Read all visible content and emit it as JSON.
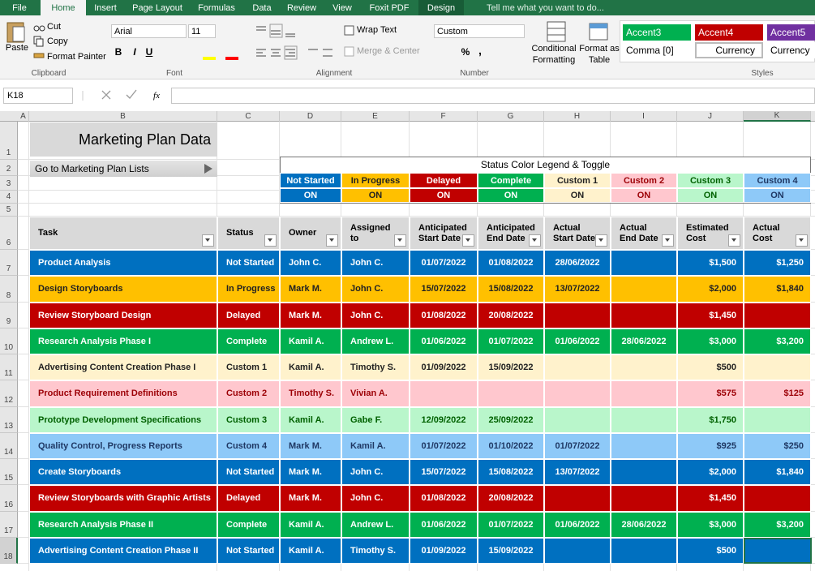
{
  "tabs": [
    "File",
    "Home",
    "Insert",
    "Page Layout",
    "Formulas",
    "Data",
    "Review",
    "View",
    "Foxit PDF",
    "Design"
  ],
  "tell_me": "Tell me what you want to do...",
  "ribbon": {
    "clipboard": {
      "paste": "Paste",
      "cut": "Cut",
      "copy": "Copy",
      "format_painter": "Format Painter",
      "label": "Clipboard"
    },
    "font": {
      "name": "Arial",
      "size": 11,
      "bold": "B",
      "italic": "I",
      "underline": "U",
      "label": "Font"
    },
    "alignment": {
      "wrap": "Wrap Text",
      "merge": "Merge & Center",
      "label": "Alignment"
    },
    "number": {
      "format": "Custom",
      "percent": "%",
      "comma": ",",
      "label": "Number"
    },
    "conditional": "Conditional Formatting",
    "format_table": "Format as Table",
    "styles": {
      "items": [
        {
          "text": "Accent3",
          "color": "#00b050",
          "text_color": "#ffffff"
        },
        {
          "text": "Accent4",
          "color": "#c00000",
          "text_color": "#ffffff"
        },
        {
          "text": "Accent5",
          "color": "#7030a0",
          "text_color": "#ffffff"
        },
        {
          "text": "Comma [0]",
          "color": "#ffffff",
          "text_color": "#000000"
        },
        {
          "text": "Currency",
          "color": "#ffffff",
          "text_color": "#000000"
        },
        {
          "text": "Currency",
          "color": "#ffffff",
          "text_color": "#000000"
        }
      ],
      "label": "Styles"
    }
  },
  "name_box": "K18",
  "fx": "fx",
  "columns": [
    "A",
    "B",
    "C",
    "D",
    "E",
    "F",
    "G",
    "H",
    "I",
    "J",
    "K"
  ],
  "rows": [
    1,
    2,
    3,
    4,
    5,
    6,
    7,
    8,
    9,
    10,
    11,
    12,
    13,
    14,
    15,
    16,
    17,
    18
  ],
  "sheet": {
    "title": "Marketing Plan Data",
    "link": "Go to Marketing Plan Lists",
    "legend": {
      "title": "Status Color Legend & Toggle",
      "items": [
        {
          "status": "Not Started",
          "toggle": "ON",
          "color": "#0070c0",
          "text_color": "#ffffff"
        },
        {
          "status": "In Progress",
          "toggle": "ON",
          "color": "#ffc000",
          "text_color": "#222222"
        },
        {
          "status": "Delayed",
          "toggle": "ON",
          "color": "#c00000",
          "text_color": "#ffffff"
        },
        {
          "status": "Complete",
          "toggle": "ON",
          "color": "#00b050",
          "text_color": "#ffffff"
        },
        {
          "status": "Custom 1",
          "toggle": "ON",
          "color": "#fff2cc",
          "text_color": "#222222"
        },
        {
          "status": "Custom 2",
          "toggle": "ON",
          "color": "#ffc7ce",
          "text_color": "#9c0006"
        },
        {
          "status": "Custom 3",
          "toggle": "ON",
          "color": "#b9f6cb",
          "text_color": "#006100"
        },
        {
          "status": "Custom 4",
          "toggle": "ON",
          "color": "#8ec9f8",
          "text_color": "#1f3864"
        }
      ]
    },
    "table": {
      "headers": [
        "Task",
        "Status",
        "Owner",
        "Assigned to",
        "Anticipated Start Date",
        "Anticipated End Date",
        "Actual Start Date",
        "Actual End Date",
        "Estimated Cost",
        "Actual Cost"
      ],
      "rows": [
        [
          "Product Analysis",
          "Not Started",
          "John C.",
          "John C.",
          "01/07/2022",
          "01/08/2022",
          "28/06/2022",
          null,
          "$1,500",
          "$1,250"
        ],
        [
          "Design Storyboards",
          "In Progress",
          "Mark M.",
          "John C.",
          "15/07/2022",
          "15/08/2022",
          "13/07/2022",
          null,
          "$2,000",
          "$1,840"
        ],
        [
          "Review Storyboard Design",
          "Delayed",
          "Mark M.",
          "John C.",
          "01/08/2022",
          "20/08/2022",
          null,
          null,
          "$1,450",
          null
        ],
        [
          "Research Analysis Phase I",
          "Complete",
          "Kamil A.",
          "Andrew L.",
          "01/06/2022",
          "01/07/2022",
          "01/06/2022",
          "28/06/2022",
          "$3,000",
          "$3,200"
        ],
        [
          "Advertising Content Creation Phase I",
          "Custom 1",
          "Kamil A.",
          "Timothy S.",
          "01/09/2022",
          "15/09/2022",
          null,
          null,
          "$500",
          null
        ],
        [
          "Product Requirement Definitions",
          "Custom 2",
          "Timothy S.",
          "Vivian A.",
          null,
          null,
          null,
          null,
          "$575",
          "$125"
        ],
        [
          "Prototype Development Specifications",
          "Custom 3",
          "Kamil A.",
          "Gabe F.",
          "12/09/2022",
          "25/09/2022",
          null,
          null,
          "$1,750",
          null
        ],
        [
          "Quality Control, Progress Reports",
          "Custom 4",
          "Mark M.",
          "Kamil A.",
          "01/07/2022",
          "01/10/2022",
          "01/07/2022",
          null,
          "$925",
          "$250"
        ],
        [
          "Create Storyboards",
          "Not Started",
          "Mark M.",
          "John C.",
          "15/07/2022",
          "15/08/2022",
          "13/07/2022",
          null,
          "$2,000",
          "$1,840"
        ],
        [
          "Review Storyboards with Graphic Artists",
          "Delayed",
          "Mark M.",
          "John C.",
          "01/08/2022",
          "20/08/2022",
          null,
          null,
          "$1,450",
          null
        ],
        [
          "Research Analysis Phase II",
          "Complete",
          "Kamil A.",
          "Andrew L.",
          "01/06/2022",
          "01/07/2022",
          "01/06/2022",
          "28/06/2022",
          "$3,000",
          "$3,200"
        ],
        [
          "Advertising Content Creation Phase II",
          "Not Started",
          "Kamil A.",
          "Timothy S.",
          "01/09/2022",
          "15/09/2022",
          null,
          null,
          "$500",
          null
        ]
      ]
    }
  }
}
